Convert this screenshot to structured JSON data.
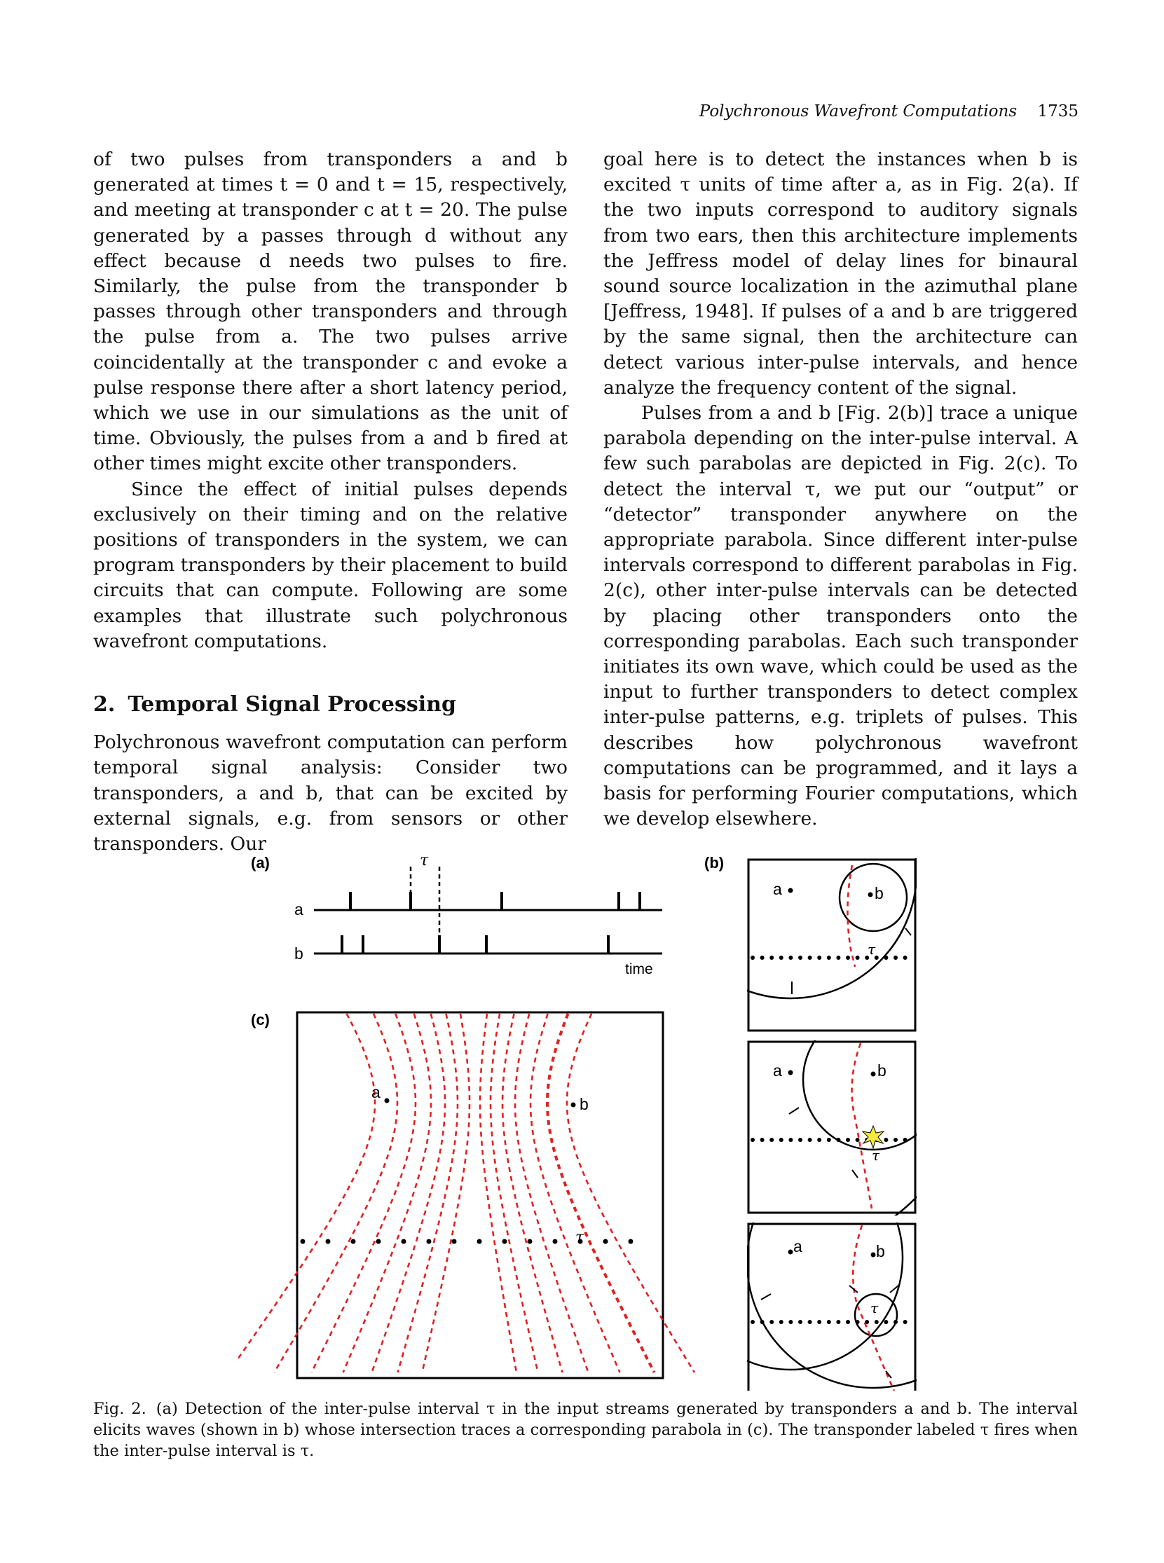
{
  "header": {
    "title": "Polychronous Wavefront Computations",
    "page_number": "1735"
  },
  "left_column": {
    "p1": "of two pulses from transponders a and b generated at times t = 0 and t = 15, respectively, and meeting at transponder c at t = 20. The pulse generated by a passes through d without any effect because d needs two pulses to fire. Similarly, the pulse from the transponder b passes through other transponders and through the pulse from a. The two pulses arrive coincidentally at the transponder c and evoke a pulse response there after a short latency period, which we use in our simulations as the unit of time. Obviously, the pulses from a and b fired at other times might excite other transponders.",
    "p2": "Since the effect of initial pulses depends exclusively on their timing and on the relative positions of transponders in the system, we can program transponders by their placement to build circuits that can compute. Following are some examples that illustrate such polychronous wavefront computations.",
    "section": {
      "number": "2.",
      "title": "Temporal Signal Processing"
    },
    "p3": "Polychronous wavefront computation can perform temporal signal analysis: Consider two transponders, a and b, that can be excited by external signals, e.g. from sensors or other transponders. Our"
  },
  "right_column": {
    "p1": "goal here is to detect the instances when b is excited τ units of time after a, as in Fig. 2(a). If the two inputs correspond to auditory signals from two ears, then this architecture implements the Jeffress model of delay lines for binaural sound source localization in the azimuthal plane [Jeffress, 1948]. If pulses of a and b are triggered by the same signal, then the architecture can detect various inter-pulse intervals, and hence analyze the frequency content of the signal.",
    "p2": "Pulses from a and b [Fig. 2(b)] trace a unique parabola depending on the inter-pulse interval. A few such parabolas are depicted in Fig. 2(c). To detect the interval τ, we put our “output” or “detector” transponder anywhere on the appropriate parabola. Since different inter-pulse intervals correspond to different parabolas in Fig. 2(c), other inter-pulse intervals can be detected by placing other transponders onto the corresponding parabolas. Each such transponder initiates its own wave, which could be used as the input to further transponders to detect complex inter-pulse patterns, e.g. triplets of pulses. This describes how polychronous wavefront computations can be programmed, and it lays a basis for performing Fourier computations, which we develop elsewhere."
  },
  "figure": {
    "panel_a": {
      "label": "(a)",
      "row_a": "a",
      "row_b": "b",
      "time_label": "time",
      "tau": "τ"
    },
    "panel_b": {
      "label": "(b)",
      "a": "a",
      "b": "b",
      "tau": "τ"
    },
    "panel_c": {
      "label": "(c)",
      "a": "a",
      "b": "b",
      "tau": "τ"
    },
    "colors": {
      "curves": "#e02020",
      "lines": "#000000",
      "star": "#f6ea3c"
    }
  },
  "caption": {
    "label": "Fig. 2.",
    "text": "(a) Detection of the inter-pulse interval τ in the input streams generated by transponders a and b. The interval elicits waves (shown in b) whose intersection traces a corresponding parabola in (c). The transponder labeled τ fires when the inter-pulse interval is τ."
  }
}
